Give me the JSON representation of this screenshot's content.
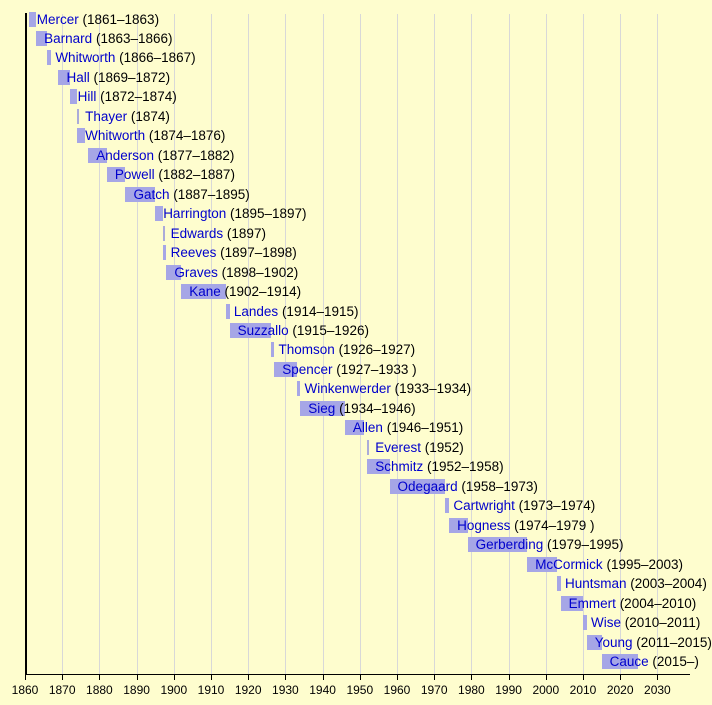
{
  "chart_data": {
    "type": "bar",
    "variant": "horizontal-timeline-gantt",
    "title": "",
    "subject": "Presidents timeline with terms of office",
    "x_axis": {
      "min": 1860,
      "max": 2038,
      "ticks": [
        1860,
        1870,
        1880,
        1890,
        1900,
        1910,
        1920,
        1930,
        1940,
        1950,
        1960,
        1970,
        1980,
        1990,
        2000,
        2010,
        2020,
        2030
      ],
      "grid": "on",
      "major_line_year": 1860
    },
    "entries": [
      {
        "name": "Mercer",
        "years": "(1861–1863)",
        "start": 1861,
        "end": 1863
      },
      {
        "name": "Barnard",
        "years": "(1863–1866)",
        "start": 1863,
        "end": 1866
      },
      {
        "name": "Whitworth",
        "years": "(1866–1867)",
        "start": 1866,
        "end": 1867
      },
      {
        "name": "Hall",
        "years": "(1869–1872)",
        "start": 1869,
        "end": 1872
      },
      {
        "name": "Hill",
        "years": "(1872–1874)",
        "start": 1872,
        "end": 1874
      },
      {
        "name": "Thayer",
        "years": "(1874)",
        "start": 1874,
        "end": 1874
      },
      {
        "name": "Whitworth",
        "years": "(1874–1876)",
        "start": 1874,
        "end": 1876
      },
      {
        "name": "Anderson",
        "years": "(1877–1882)",
        "start": 1877,
        "end": 1882
      },
      {
        "name": "Powell",
        "years": "(1882–1887)",
        "start": 1882,
        "end": 1887
      },
      {
        "name": "Gatch",
        "years": "(1887–1895)",
        "start": 1887,
        "end": 1895
      },
      {
        "name": "Harrington",
        "years": "(1895–1897)",
        "start": 1895,
        "end": 1897
      },
      {
        "name": "Edwards",
        "years": "(1897)",
        "start": 1897,
        "end": 1897
      },
      {
        "name": "Reeves",
        "years": "(1897–1898)",
        "start": 1897,
        "end": 1898
      },
      {
        "name": "Graves",
        "years": "(1898–1902)",
        "start": 1898,
        "end": 1902
      },
      {
        "name": "Kane",
        "years": "(1902–1914)",
        "start": 1902,
        "end": 1914
      },
      {
        "name": "Landes",
        "years": "(1914–1915)",
        "start": 1914,
        "end": 1915
      },
      {
        "name": "Suzzallo",
        "years": "(1915–1926)",
        "start": 1915,
        "end": 1926
      },
      {
        "name": "Thomson",
        "years": "(1926–1927)",
        "start": 1926,
        "end": 1927
      },
      {
        "name": "Spencer",
        "years": "(1927–1933 )",
        "start": 1927,
        "end": 1933
      },
      {
        "name": "Winkenwerder",
        "years": "(1933–1934)",
        "start": 1933,
        "end": 1934
      },
      {
        "name": "Sieg",
        "years": "(1934–1946)",
        "start": 1934,
        "end": 1946
      },
      {
        "name": "Allen",
        "years": "(1946–1951)",
        "start": 1946,
        "end": 1951
      },
      {
        "name": "Everest",
        "years": "(1952)",
        "start": 1952,
        "end": 1952
      },
      {
        "name": "Schmitz",
        "years": "(1952–1958)",
        "start": 1952,
        "end": 1958
      },
      {
        "name": "Odegaard",
        "years": "(1958–1973)",
        "start": 1958,
        "end": 1973
      },
      {
        "name": "Cartwright",
        "years": "(1973–1974)",
        "start": 1973,
        "end": 1974
      },
      {
        "name": "Hogness",
        "years": "(1974–1979 )",
        "start": 1974,
        "end": 1979
      },
      {
        "name": "Gerberding",
        "years": "(1979–1995)",
        "start": 1979,
        "end": 1995
      },
      {
        "name": "McCormick",
        "years": "(1995–2003)",
        "start": 1995,
        "end": 2003
      },
      {
        "name": "Huntsman",
        "years": "(2003–2004)",
        "start": 2003,
        "end": 2004
      },
      {
        "name": "Emmert",
        "years": "(2004–2010)",
        "start": 2004,
        "end": 2010
      },
      {
        "name": "Wise",
        "years": "(2010–2011)",
        "start": 2010,
        "end": 2011
      },
      {
        "name": "Young",
        "years": "(2011–2015)",
        "start": 2011,
        "end": 2015
      },
      {
        "name": "Cauce",
        "years": "(2015–)",
        "start": 2015,
        "end": 2024.7
      }
    ],
    "colors": {
      "background": "#FEFDCE",
      "gridline": "#D8D8D8",
      "major_line": "#000000",
      "axis": "#000000",
      "bar": "#A6A6E6",
      "bar_thin": "#ABABD9",
      "name_text": "#0000CC",
      "year_text": "#000000",
      "tick_text": "#000000"
    }
  }
}
